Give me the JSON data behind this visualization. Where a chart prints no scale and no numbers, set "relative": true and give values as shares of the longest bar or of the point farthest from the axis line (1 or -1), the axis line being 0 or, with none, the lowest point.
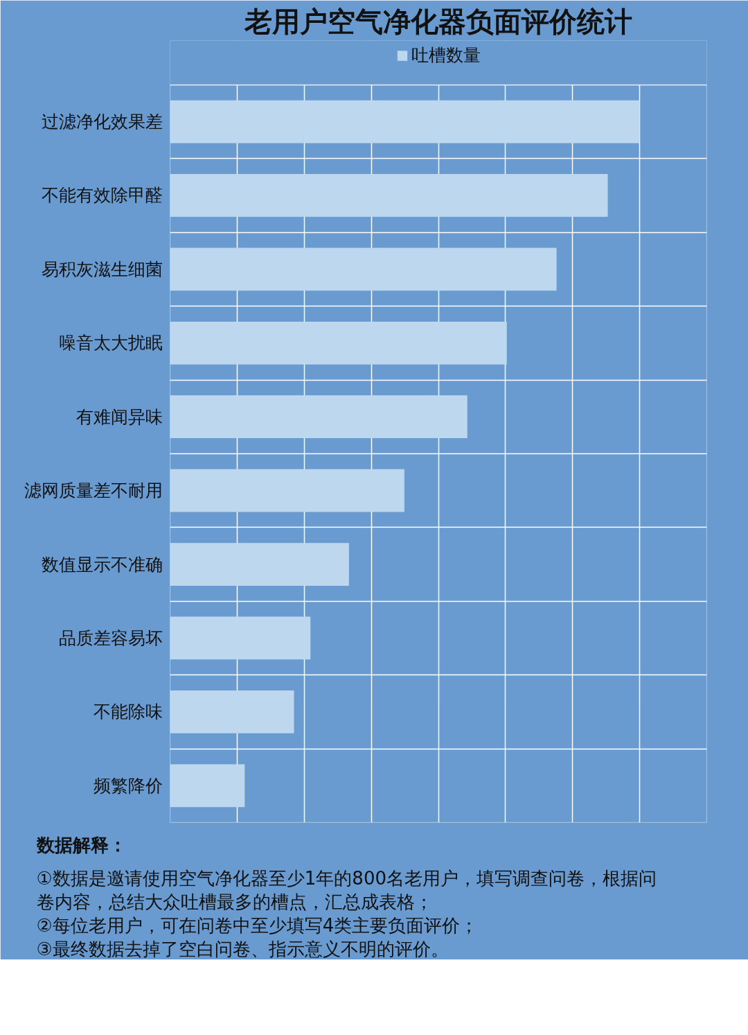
{
  "chart_data": {
    "type": "bar",
    "orientation": "horizontal",
    "relative": true,
    "title": "老用户空气净化器负面评价统计",
    "categories": [
      "过滤净化效果差",
      "不能有效除甲醛",
      "易积灰滋生细菌",
      "噪音太大扰眠",
      "有难闻异味",
      "滤网质量差不耐用",
      "数值显示不准确",
      "品质差容易坏",
      "不能除味",
      "频繁降价"
    ],
    "series": [
      {
        "name": "吐槽数量",
        "color": "#bdd7ee",
        "values": [
          1,
          0.932,
          0.823,
          0.717,
          0.633,
          0.499,
          0.381,
          0.299,
          0.264,
          0.159
        ]
      }
    ],
    "grid": true,
    "legend": "top",
    "annotations": [
      "数据解释：",
      "①数据是邀请使用空气净化器至少1年的800名老用户，填写调查问卷，根据问",
      "卷内容，总结大众吐槽最多的槽点，汇总成表格；",
      "②每位老用户，可在问卷中至少填写4类主要负面评价；",
      "③最终数据去掉了空白问卷、指示意义不明的评价。"
    ]
  }
}
